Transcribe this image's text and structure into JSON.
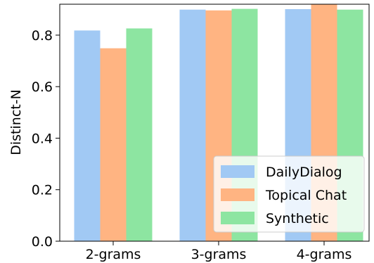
{
  "chart_data": {
    "type": "bar",
    "categories": [
      "2-grams",
      "3-grams",
      "4-grams"
    ],
    "series": [
      {
        "name": "DailyDialog",
        "color": "#a1c9f4",
        "values": [
          0.818,
          0.899,
          0.901
        ]
      },
      {
        "name": "Topical Chat",
        "color": "#ffb482",
        "values": [
          0.749,
          0.896,
          0.921
        ]
      },
      {
        "name": "Synthetic",
        "color": "#8de5a1",
        "values": [
          0.826,
          0.902,
          0.899
        ]
      }
    ],
    "title": "",
    "xlabel": "",
    "ylabel": "Distinct-N",
    "ylim": [
      0,
      0.92
    ],
    "yticks": [
      0.0,
      0.2,
      0.4,
      0.6,
      0.8
    ],
    "ytick_labels": [
      "0.0",
      "0.2",
      "0.4",
      "0.6",
      "0.8"
    ],
    "legend_position": "lower-right",
    "grid": false
  }
}
